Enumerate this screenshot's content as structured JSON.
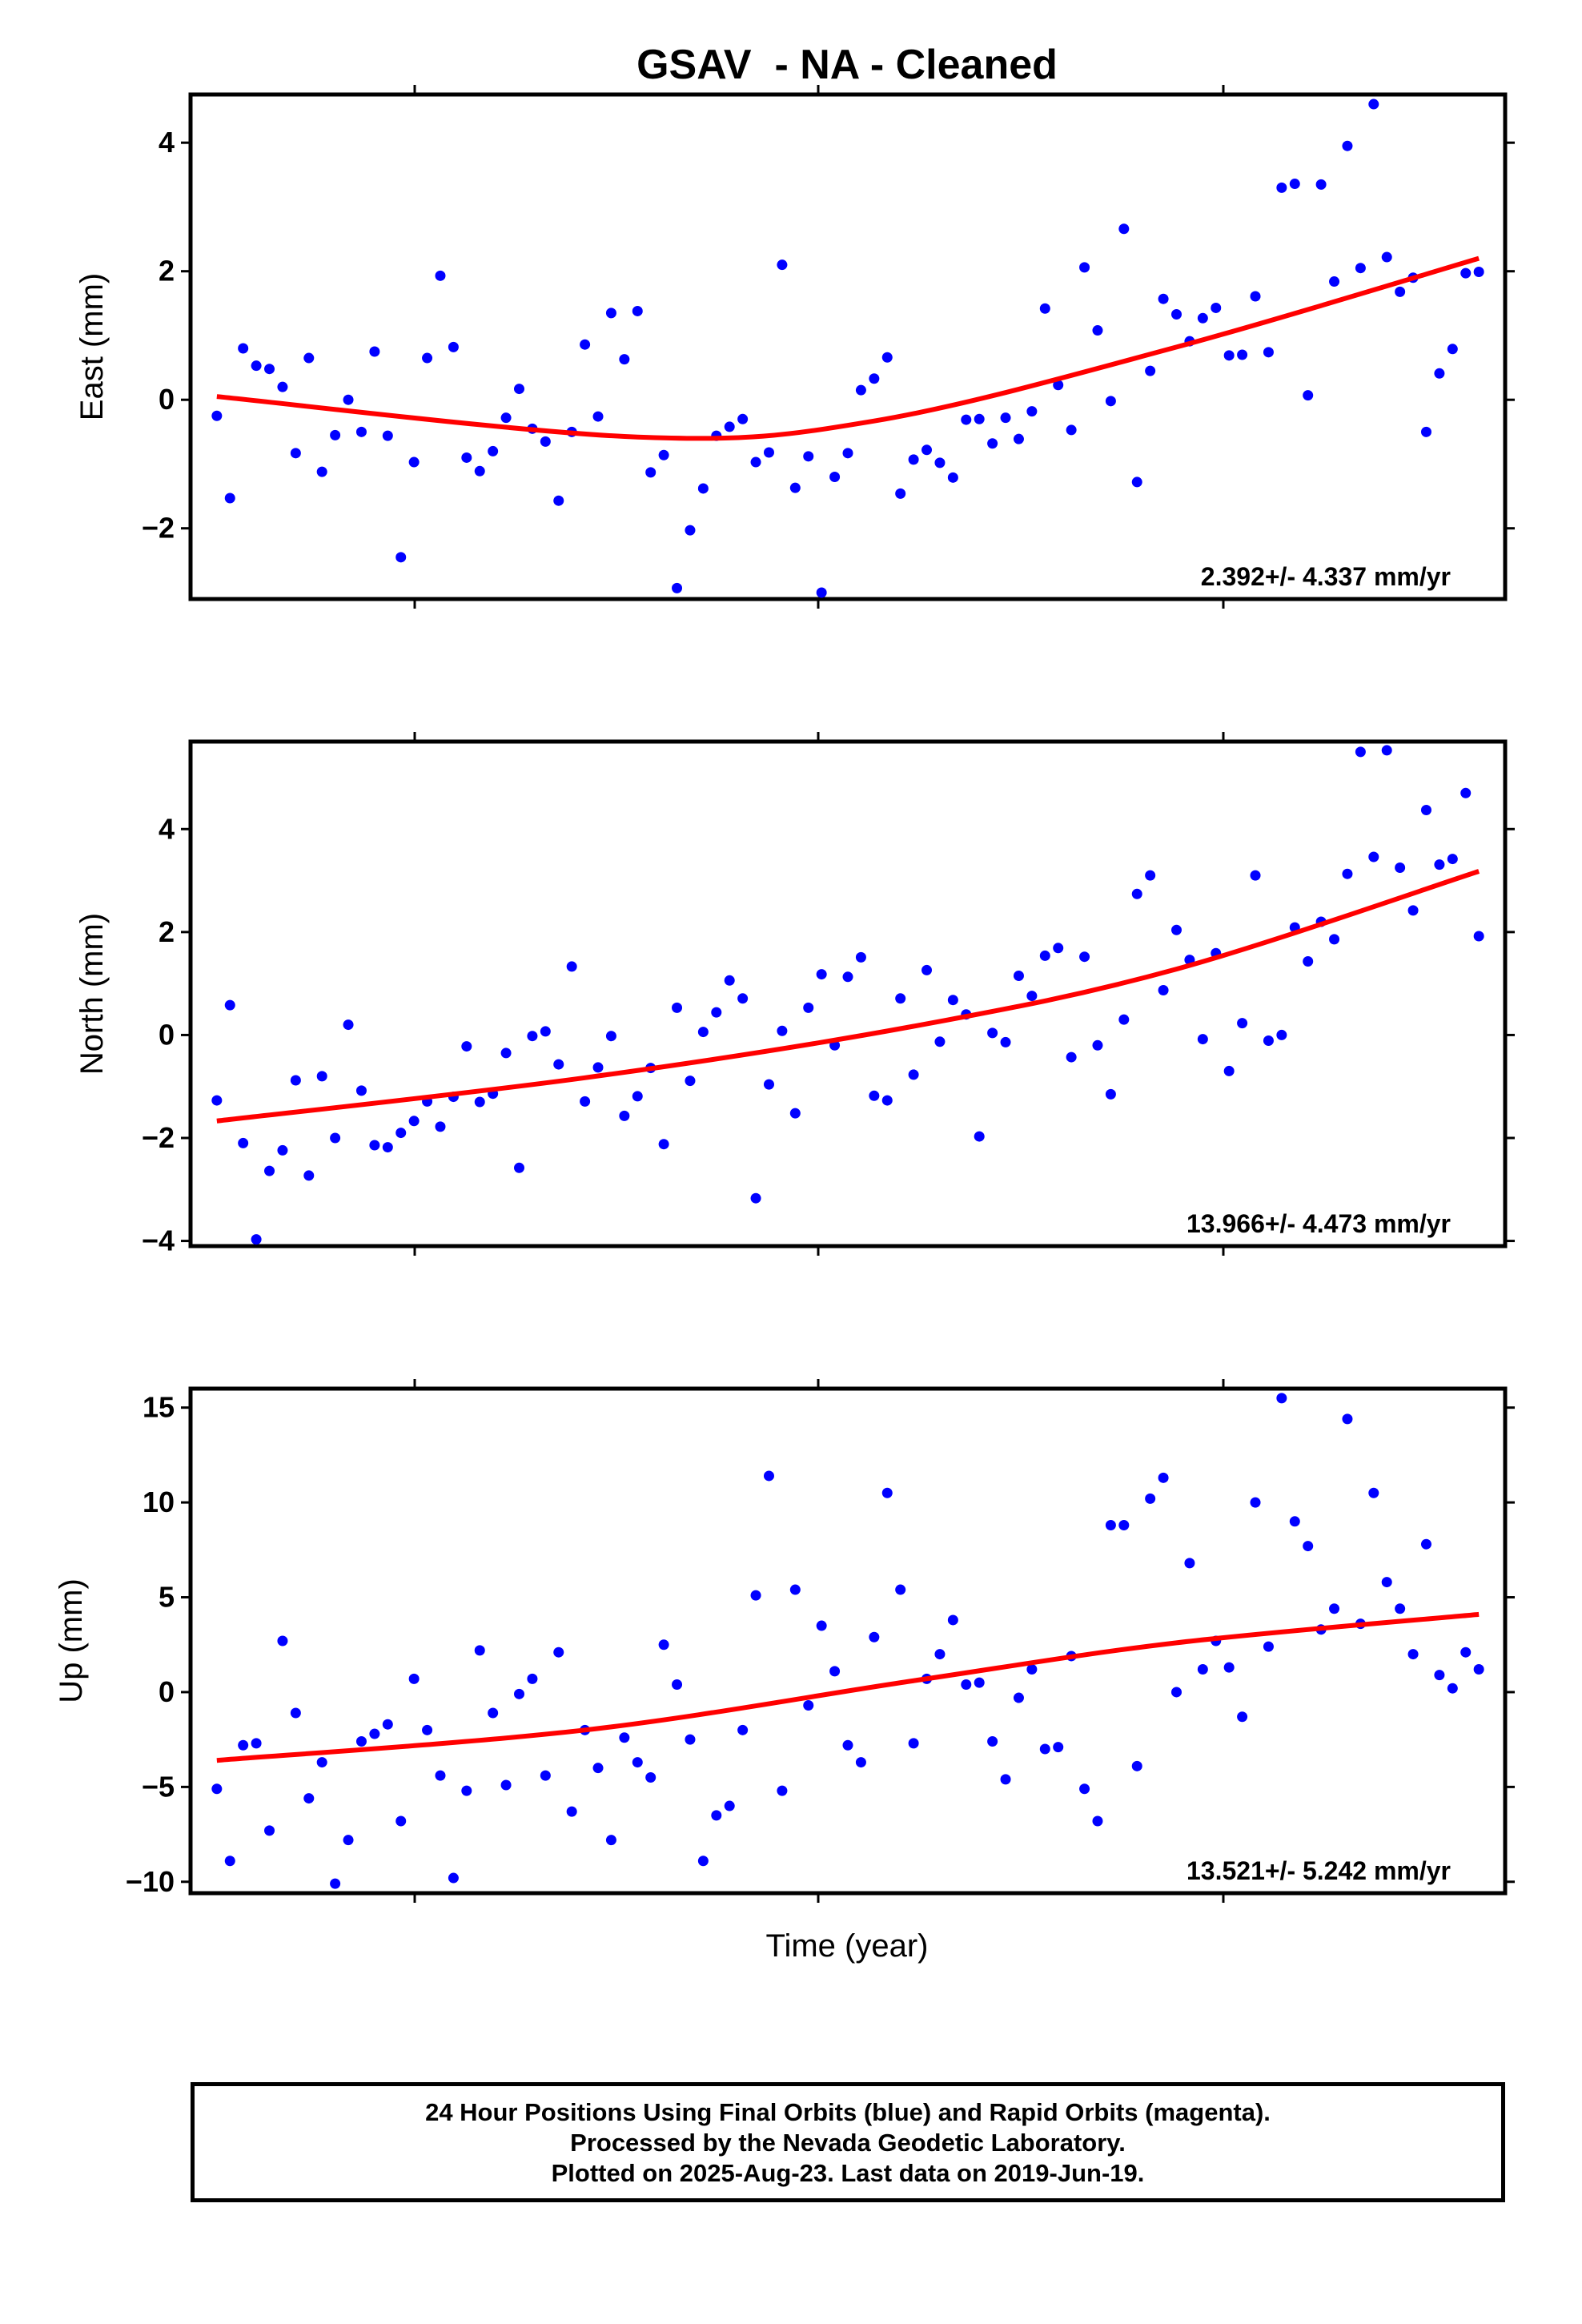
{
  "title": "GSAV  - NA - Cleaned",
  "footer": {
    "line1": "24 Hour Positions Using Final Orbits (blue) and Rapid Orbits (magenta).",
    "line2": "Processed by the Nevada Geodetic Laboratory.",
    "line3": "Plotted on 2025-Aug-23. Last data on 2019-Jun-19."
  },
  "colors": {
    "points": "#0000ff",
    "fit": "#ff0000",
    "frame": "#000000"
  },
  "chart_data": [
    {
      "type": "scatter",
      "ylabel": "East (mm)",
      "xlabel": "",
      "ylim": [
        -3.1,
        4.75
      ],
      "yticks": [
        4,
        2,
        0,
        -2
      ],
      "ytick_labels": [
        "4",
        "2",
        "0",
        "−2"
      ],
      "rate_label": "2.392+/- 4.337 mm/yr",
      "x": [
        0.02,
        0.03,
        0.04,
        0.05,
        0.06,
        0.07,
        0.08,
        0.09,
        0.1,
        0.11,
        0.12,
        0.13,
        0.14,
        0.15,
        0.16,
        0.17,
        0.18,
        0.19,
        0.2,
        0.21,
        0.22,
        0.23,
        0.24,
        0.25,
        0.26,
        0.27,
        0.28,
        0.29,
        0.3,
        0.31,
        0.32,
        0.33,
        0.34,
        0.35,
        0.36,
        0.37,
        0.38,
        0.39,
        0.4,
        0.41,
        0.42,
        0.43,
        0.44,
        0.45,
        0.46,
        0.47,
        0.48,
        0.49,
        0.5,
        0.51,
        0.52,
        0.53,
        0.54,
        0.55,
        0.56,
        0.57,
        0.58,
        0.59,
        0.6,
        0.61,
        0.62,
        0.63,
        0.64,
        0.65,
        0.66,
        0.67,
        0.68,
        0.69,
        0.7,
        0.71,
        0.72,
        0.73,
        0.74,
        0.75,
        0.76,
        0.77,
        0.78,
        0.79,
        0.8,
        0.81,
        0.82,
        0.83,
        0.84,
        0.85,
        0.86,
        0.87,
        0.88,
        0.89,
        0.9,
        0.91,
        0.92,
        0.93,
        0.94,
        0.95,
        0.96,
        0.97,
        0.98
      ],
      "values": [
        -0.25,
        -1.53,
        0.8,
        0.53,
        0.48,
        0.2,
        -0.83,
        0.65,
        -1.12,
        -0.55,
        0.0,
        -0.5,
        0.75,
        -0.56,
        -2.45,
        -0.97,
        0.65,
        1.93,
        0.82,
        -0.9,
        -1.11,
        -0.8,
        -0.28,
        0.17,
        -0.45,
        -0.65,
        -1.57,
        -0.5,
        0.86,
        -0.26,
        1.35,
        0.63,
        1.38,
        -1.13,
        -0.86,
        -2.93,
        -2.03,
        -1.38,
        -0.56,
        -0.42,
        -0.3,
        -0.97,
        -0.82,
        2.1,
        -1.37,
        -0.88,
        -3.0,
        -1.2,
        -0.83,
        0.15,
        0.33,
        0.66,
        -1.46,
        -0.93,
        -0.78,
        -0.98,
        -1.21,
        -0.31,
        -0.3,
        -0.68,
        -0.28,
        -0.61,
        -0.18,
        1.42,
        0.23,
        -0.47,
        2.06,
        1.08,
        -0.02,
        2.66,
        -1.28,
        0.45,
        1.57,
        1.33,
        0.91,
        1.27,
        1.43,
        0.69,
        0.7,
        1.61,
        0.74,
        3.3,
        3.36,
        0.07,
        3.35,
        1.84,
        3.95,
        2.05,
        4.6,
        2.22,
        1.68,
        1.9,
        -0.5,
        0.41,
        0.79,
        1.97,
        1.99
      ],
      "fit": {
        "x": [
          0.02,
          0.34,
          0.52,
          0.75,
          0.98
        ],
        "values": [
          0.05,
          -0.58,
          -0.33,
          0.82,
          2.2
        ]
      }
    },
    {
      "type": "scatter",
      "ylabel": "North (mm)",
      "xlabel": "",
      "ylim": [
        -4.1,
        5.7
      ],
      "yticks": [
        4,
        2,
        0,
        -2,
        -4
      ],
      "ytick_labels": [
        "4",
        "2",
        "0",
        "−2",
        "−4"
      ],
      "rate_label": "13.966+/- 4.473 mm/yr",
      "x": [
        0.02,
        0.03,
        0.04,
        0.05,
        0.06,
        0.07,
        0.08,
        0.09,
        0.1,
        0.11,
        0.12,
        0.13,
        0.14,
        0.15,
        0.16,
        0.17,
        0.18,
        0.19,
        0.2,
        0.21,
        0.22,
        0.23,
        0.24,
        0.25,
        0.26,
        0.27,
        0.28,
        0.29,
        0.3,
        0.31,
        0.32,
        0.33,
        0.34,
        0.35,
        0.36,
        0.37,
        0.38,
        0.39,
        0.4,
        0.41,
        0.42,
        0.43,
        0.44,
        0.45,
        0.46,
        0.47,
        0.48,
        0.49,
        0.5,
        0.51,
        0.52,
        0.53,
        0.54,
        0.55,
        0.56,
        0.57,
        0.58,
        0.59,
        0.6,
        0.61,
        0.62,
        0.63,
        0.64,
        0.65,
        0.66,
        0.67,
        0.68,
        0.69,
        0.7,
        0.71,
        0.72,
        0.73,
        0.74,
        0.75,
        0.76,
        0.77,
        0.78,
        0.79,
        0.8,
        0.81,
        0.82,
        0.83,
        0.84,
        0.85,
        0.86,
        0.87,
        0.88,
        0.89,
        0.9,
        0.91,
        0.92,
        0.93,
        0.94,
        0.95,
        0.96,
        0.97,
        0.98
      ],
      "values": [
        -1.27,
        0.58,
        -2.1,
        -3.97,
        -2.64,
        -2.24,
        -0.88,
        -2.73,
        -0.8,
        -2.0,
        0.2,
        -1.08,
        -2.14,
        -2.18,
        -1.9,
        -1.67,
        -1.29,
        -1.78,
        -1.2,
        -0.22,
        -1.3,
        -1.14,
        -0.35,
        -2.58,
        -0.02,
        0.07,
        -0.57,
        1.33,
        -1.29,
        -0.63,
        -0.02,
        -1.57,
        -1.19,
        -0.64,
        -2.12,
        0.53,
        -0.89,
        0.06,
        0.44,
        1.06,
        0.71,
        -3.17,
        -0.96,
        0.08,
        -1.52,
        0.53,
        1.18,
        -0.2,
        1.13,
        1.51,
        -1.18,
        -1.27,
        0.71,
        -0.77,
        1.26,
        -0.13,
        0.68,
        0.4,
        -1.97,
        0.04,
        -0.14,
        1.15,
        0.76,
        1.54,
        1.69,
        -0.43,
        1.52,
        -0.2,
        -1.15,
        0.3,
        2.74,
        3.1,
        0.87,
        2.04,
        1.46,
        -0.08,
        1.59,
        -0.7,
        0.23,
        3.1,
        -0.11,
        0.0,
        2.09,
        1.43,
        2.2,
        1.86,
        3.13,
        5.5,
        3.46,
        5.53,
        3.25,
        2.42,
        4.37,
        3.31,
        3.42,
        4.7,
        1.92
      ],
      "fit": {
        "x": [
          0.02,
          0.3,
          0.55,
          0.75,
          0.98
        ],
        "values": [
          -1.67,
          -0.83,
          0.17,
          1.28,
          3.18
        ]
      }
    },
    {
      "type": "scatter",
      "ylabel": "Up (mm)",
      "xlabel": "Time (year)",
      "ylim": [
        -10.6,
        16.0
      ],
      "yticks": [
        15,
        10,
        5,
        0,
        -5,
        -10
      ],
      "ytick_labels": [
        "15",
        "10",
        "5",
        "0",
        "−5",
        "−10"
      ],
      "rate_label": "13.521+/- 5.242 mm/yr",
      "x": [
        0.02,
        0.03,
        0.04,
        0.05,
        0.06,
        0.07,
        0.08,
        0.09,
        0.1,
        0.11,
        0.12,
        0.13,
        0.14,
        0.15,
        0.16,
        0.17,
        0.18,
        0.19,
        0.2,
        0.21,
        0.22,
        0.23,
        0.24,
        0.25,
        0.26,
        0.27,
        0.28,
        0.29,
        0.3,
        0.31,
        0.32,
        0.33,
        0.34,
        0.35,
        0.36,
        0.37,
        0.38,
        0.39,
        0.4,
        0.41,
        0.42,
        0.43,
        0.44,
        0.45,
        0.46,
        0.47,
        0.48,
        0.49,
        0.5,
        0.51,
        0.52,
        0.53,
        0.54,
        0.55,
        0.56,
        0.57,
        0.58,
        0.59,
        0.6,
        0.61,
        0.62,
        0.63,
        0.64,
        0.65,
        0.66,
        0.67,
        0.68,
        0.69,
        0.7,
        0.71,
        0.72,
        0.73,
        0.74,
        0.75,
        0.76,
        0.77,
        0.78,
        0.79,
        0.8,
        0.81,
        0.82,
        0.83,
        0.84,
        0.85,
        0.86,
        0.87,
        0.88,
        0.89,
        0.9,
        0.91,
        0.92,
        0.93,
        0.94,
        0.95,
        0.96,
        0.97,
        0.98
      ],
      "values": [
        -5.1,
        -8.9,
        -2.8,
        -2.7,
        -7.3,
        2.7,
        -1.1,
        -5.6,
        -3.7,
        -10.1,
        -7.8,
        -2.6,
        -2.2,
        -1.7,
        -6.8,
        0.7,
        -2.0,
        -4.4,
        -9.8,
        -5.2,
        2.2,
        -1.1,
        -4.9,
        -0.1,
        0.7,
        -4.4,
        2.1,
        -6.3,
        -2.0,
        -4.0,
        -7.8,
        -2.4,
        -3.7,
        -4.5,
        2.5,
        0.4,
        -2.5,
        -8.9,
        -6.5,
        -6.0,
        -2.0,
        5.1,
        11.4,
        -5.2,
        5.4,
        -0.7,
        3.5,
        1.1,
        -2.8,
        -3.7,
        2.9,
        10.5,
        5.4,
        -2.7,
        0.7,
        2.0,
        3.8,
        0.4,
        0.5,
        -2.6,
        -4.6,
        -0.3,
        1.2,
        -3.0,
        -2.9,
        1.9,
        -5.1,
        -6.8,
        8.8,
        8.8,
        -3.9,
        10.2,
        11.3,
        0.0,
        6.8,
        1.2,
        2.7,
        1.3,
        -1.3,
        10.0,
        2.4,
        15.5,
        9.0,
        7.7,
        3.3,
        4.4,
        14.4,
        3.6,
        10.5,
        5.8,
        4.4,
        2.0,
        7.8,
        0.9,
        0.2,
        2.1,
        1.2
      ],
      "fit": {
        "x": [
          0.02,
          0.3,
          0.55,
          0.75,
          0.98
        ],
        "values": [
          -3.6,
          -2.0,
          0.6,
          2.6,
          4.1
        ]
      }
    }
  ]
}
